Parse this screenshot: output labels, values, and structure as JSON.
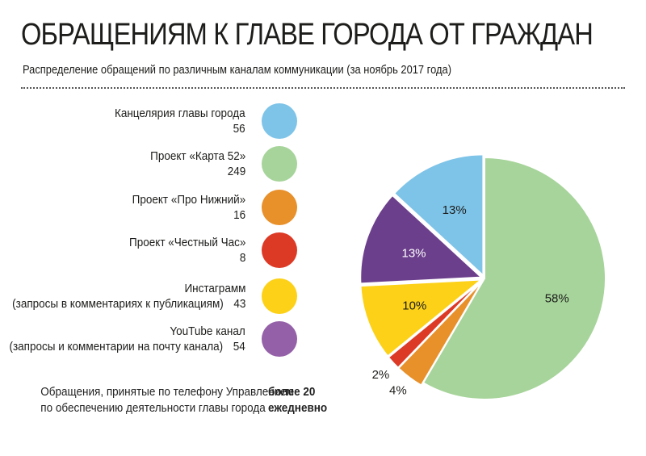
{
  "title": "ОБРАЩЕНИЯМ К ГЛАВЕ ГОРОДА ОТ ГРАЖДАН",
  "subtitle": "Распределение обращений по различным каналам коммуникации (за ноябрь 2017 года)",
  "legend": [
    {
      "line1": "Канцелярия главы города",
      "line2": "",
      "value": "56",
      "color": "#7ec4e8"
    },
    {
      "line1": "Проект «Карта 52»",
      "line2": "",
      "value": "249",
      "color": "#a6d49a"
    },
    {
      "line1": "Проект «Про Нижний»",
      "line2": "",
      "value": "16",
      "color": "#e8902a"
    },
    {
      "line1": "Проект «Честный Час»",
      "line2": "",
      "value": "8",
      "color": "#dd3a26"
    },
    {
      "line1": "Инстаграмм",
      "line2": "(запросы в комментариях к публикациям)",
      "value": "43",
      "color": "#fcd118"
    },
    {
      "line1": "YouTube канал",
      "line2": "(запросы и комментарии на почту канала)",
      "value": "54",
      "color": "#9460a8"
    }
  ],
  "phone_note": {
    "line1": "Обращения, принятые по телефону Управлением",
    "line2": "по обеспечению деятельности главы города",
    "value_line1": "более 20",
    "value_line2": "ежедневно"
  },
  "chart_data": {
    "type": "pie",
    "title": "ОБРАЩЕНИЯМ К ГЛАВЕ ГОРОДА ОТ ГРАЖДАН",
    "slices": [
      {
        "name": "Проект «Карта 52»",
        "value": 249,
        "label": "58%",
        "color": "#a6d49a",
        "label_color": "#1d1d1b"
      },
      {
        "name": "Проект «Про Нижний»",
        "value": 16,
        "label": "4%",
        "color": "#e8902a",
        "label_color": "#1d1d1b"
      },
      {
        "name": "Проект «Честный Час»",
        "value": 8,
        "label": "2%",
        "color": "#dd3a26",
        "label_color": "#1d1d1b"
      },
      {
        "name": "Инстаграмм",
        "value": 43,
        "label": "10%",
        "color": "#fcd118",
        "label_color": "#1d1d1b"
      },
      {
        "name": "YouTube канал",
        "value": 54,
        "label": "13%",
        "color": "#6c3f8c",
        "label_color": "#ffffff"
      },
      {
        "name": "Канцелярия главы города",
        "value": 56,
        "label": "13%",
        "color": "#7ec4e8",
        "label_color": "#1d1d1b"
      }
    ]
  }
}
